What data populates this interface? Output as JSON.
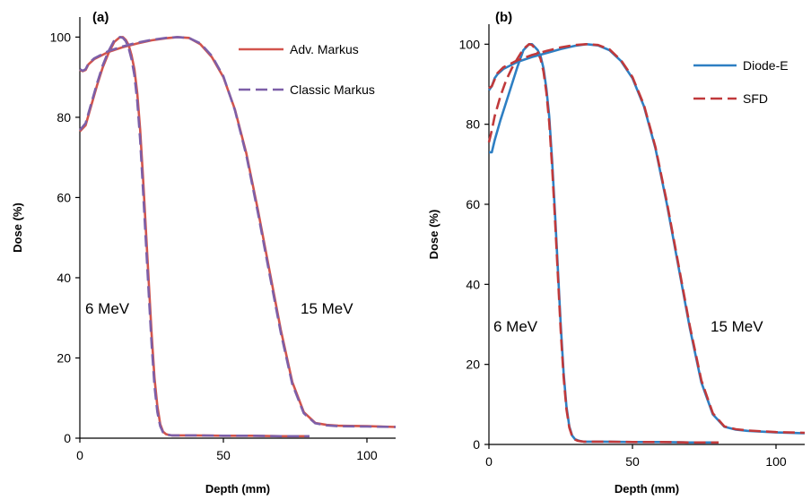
{
  "chart_data": [
    {
      "type": "line",
      "panel_label": "(a)",
      "xlabel": "Depth (mm)",
      "ylabel": "Dose (%)",
      "xlim": [
        0,
        110
      ],
      "ylim": [
        0,
        105
      ],
      "xticks": [
        0,
        50,
        100
      ],
      "yticks": [
        0,
        20,
        40,
        60,
        80,
        100
      ],
      "legend_position": "top-right",
      "annotations": [
        {
          "text": "6 MeV",
          "x": 2,
          "y": 33
        },
        {
          "text": "15 MeV",
          "x": 75,
          "y": 33
        }
      ],
      "series": [
        {
          "name": "Adv. Markus",
          "color": "#d2544c",
          "dash": "solid",
          "energy": "6 MeV",
          "x": [
            0,
            2,
            4,
            6,
            8,
            10,
            12,
            14,
            15,
            16,
            17,
            18,
            19,
            20,
            21,
            22,
            23,
            24,
            25,
            26,
            27,
            28,
            29,
            30,
            31,
            32,
            33,
            35,
            40,
            50,
            60,
            70,
            80
          ],
          "y": [
            76.5,
            78,
            83,
            88,
            92.5,
            96,
            98.8,
            100,
            100,
            99.3,
            98,
            95.5,
            92,
            86,
            77,
            65,
            52,
            39,
            26,
            15,
            8,
            3.5,
            1.6,
            1.0,
            0.8,
            0.7,
            0.7,
            0.7,
            0.7,
            0.6,
            0.6,
            0.5,
            0.5
          ]
        },
        {
          "name": "Classic Markus",
          "color": "#7d5fa8",
          "dash": "dashed",
          "energy": "6 MeV",
          "x": [
            0,
            2,
            4,
            6,
            8,
            10,
            12,
            14,
            15,
            16,
            17,
            18,
            19,
            20,
            21,
            22,
            23,
            24,
            25,
            26,
            27,
            28,
            29,
            30,
            31,
            32,
            33,
            35,
            40,
            50,
            60,
            70,
            80
          ],
          "y": [
            76.8,
            78.5,
            83.5,
            88.5,
            93,
            96.5,
            99.2,
            100,
            99.8,
            99,
            97.3,
            94.5,
            90.5,
            84,
            74.5,
            62,
            49,
            36,
            23.5,
            13,
            6.5,
            3,
            1.4,
            0.9,
            0.8,
            0.7,
            0.7,
            0.7,
            0.7,
            0.6,
            0.6,
            0.5,
            0.5
          ]
        },
        {
          "name": "Adv. Markus",
          "color": "#d2544c",
          "dash": "solid",
          "energy": "15 MeV",
          "x": [
            0,
            1,
            2,
            3,
            5,
            10,
            15,
            20,
            25,
            30,
            34,
            38,
            42,
            46,
            50,
            54,
            58,
            62,
            66,
            70,
            74,
            78,
            82,
            86,
            90,
            100,
            110
          ],
          "y": [
            91.8,
            91.5,
            91.8,
            93.2,
            94.5,
            96.3,
            97.5,
            98.4,
            99.2,
            99.7,
            100,
            99.8,
            98.2,
            95,
            90,
            82,
            71,
            57,
            42,
            27,
            14,
            6.5,
            3.8,
            3.3,
            3.1,
            3.0,
            2.8
          ]
        },
        {
          "name": "Classic Markus",
          "color": "#7d5fa8",
          "dash": "dashed",
          "energy": "15 MeV",
          "x": [
            0,
            1,
            2,
            3,
            5,
            10,
            15,
            20,
            25,
            30,
            34,
            38,
            42,
            46,
            50,
            54,
            58,
            62,
            66,
            70,
            74,
            78,
            82,
            86,
            90,
            100,
            110
          ],
          "y": [
            92,
            91.6,
            92,
            93.4,
            94.7,
            96.5,
            97.7,
            98.6,
            99.3,
            99.8,
            100,
            99.8,
            98.4,
            95.3,
            90.2,
            81.8,
            70.5,
            56.3,
            41.2,
            26.3,
            13.5,
            6.2,
            3.7,
            3.2,
            3.0,
            2.9,
            2.8
          ]
        }
      ]
    },
    {
      "type": "line",
      "panel_label": "(b)",
      "xlabel": "Depth (mm)",
      "ylabel": "Dose (%)",
      "xlim": [
        0,
        110
      ],
      "ylim": [
        0,
        105
      ],
      "xticks": [
        0,
        50,
        100
      ],
      "yticks": [
        0,
        20,
        40,
        60,
        80,
        100
      ],
      "legend_position": "top-right",
      "annotations": [
        {
          "text": "6 MeV",
          "x": 1,
          "y": 30
        },
        {
          "text": "15 MeV",
          "x": 77,
          "y": 30
        }
      ],
      "series": [
        {
          "name": "Diode-E",
          "color": "#2e7fc3",
          "dash": "solid",
          "energy": "6 MeV",
          "x": [
            0,
            1,
            2,
            4,
            6,
            8,
            10,
            12,
            14,
            15,
            16,
            17,
            18,
            19,
            20,
            21,
            22,
            23,
            24,
            25,
            26,
            27,
            28,
            29,
            30,
            31,
            32,
            33,
            35,
            40,
            50,
            60,
            70,
            80
          ],
          "y": [
            73,
            73,
            76,
            81,
            85.5,
            90,
            94.5,
            98.5,
            100,
            100,
            99.3,
            98.5,
            97,
            94,
            89,
            82,
            71,
            58,
            44,
            30,
            18,
            9.5,
            4.5,
            2.2,
            1.3,
            1.0,
            0.8,
            0.7,
            0.7,
            0.7,
            0.6,
            0.6,
            0.5,
            0.5
          ]
        },
        {
          "name": "SFD",
          "color": "#c0393b",
          "dash": "dashed",
          "energy": "6 MeV",
          "x": [
            0,
            1,
            2,
            4,
            6,
            8,
            10,
            12,
            14,
            15,
            16,
            17,
            18,
            19,
            20,
            21,
            22,
            23,
            24,
            25,
            26,
            27,
            28,
            29,
            30,
            31,
            32,
            33,
            35,
            40,
            50,
            60,
            70,
            80
          ],
          "y": [
            75.5,
            78.5,
            82,
            87,
            91,
            94,
            96.5,
            98.8,
            100,
            99.8,
            99,
            98,
            96.3,
            93.2,
            88,
            80.5,
            69.5,
            56.5,
            42.5,
            28.5,
            17,
            8.8,
            4.2,
            2.0,
            1.2,
            0.9,
            0.8,
            0.7,
            0.7,
            0.7,
            0.6,
            0.6,
            0.5,
            0.5
          ]
        },
        {
          "name": "Diode-E",
          "color": "#2e7fc3",
          "dash": "solid",
          "energy": "15 MeV",
          "x": [
            0,
            1,
            2,
            3,
            5,
            10,
            15,
            20,
            25,
            30,
            34,
            38,
            42,
            46,
            50,
            54,
            58,
            62,
            66,
            70,
            74,
            78,
            82,
            86,
            90,
            100,
            110
          ],
          "y": [
            88.5,
            89.5,
            91.5,
            92.5,
            93.8,
            95.6,
            96.8,
            97.8,
            98.8,
            99.6,
            100,
            99.7,
            98.5,
            95.8,
            91.5,
            84.5,
            74,
            60,
            44.5,
            29,
            15.5,
            7.5,
            4.4,
            3.7,
            3.4,
            3.0,
            2.8
          ]
        },
        {
          "name": "SFD",
          "color": "#c0393b",
          "dash": "dashed",
          "energy": "15 MeV",
          "x": [
            0,
            1,
            2,
            3,
            5,
            10,
            15,
            20,
            25,
            30,
            34,
            38,
            42,
            46,
            50,
            54,
            58,
            62,
            66,
            70,
            74,
            78,
            82,
            86,
            90,
            100,
            110
          ],
          "y": [
            89,
            89.5,
            91.2,
            92.8,
            94.2,
            96,
            97.3,
            98.3,
            99.2,
            99.8,
            100,
            99.8,
            98.7,
            96,
            91.8,
            84.8,
            74.3,
            60.5,
            45,
            29.5,
            16,
            7.8,
            4.5,
            3.8,
            3.5,
            3.1,
            2.9
          ]
        }
      ]
    }
  ]
}
